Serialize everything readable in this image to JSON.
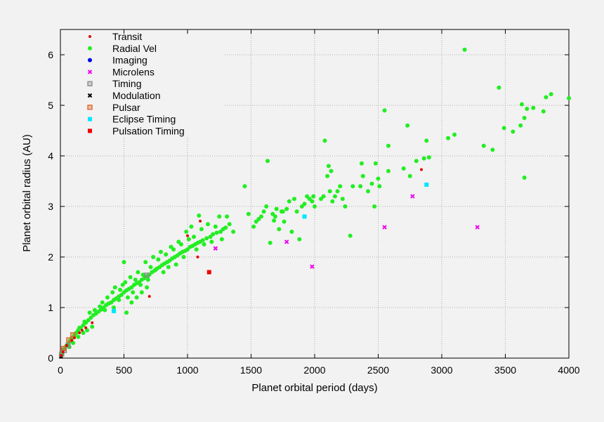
{
  "chart_data": {
    "type": "scatter",
    "xlabel": "Planet orbital period (days)",
    "ylabel": "Planet orbital radius (AU)",
    "xlim": [
      0,
      4000
    ],
    "ylim": [
      0,
      6.5
    ],
    "xticks": [
      0,
      500,
      1000,
      1500,
      2000,
      2500,
      3000,
      3500,
      4000
    ],
    "yticks": [
      0,
      1,
      2,
      3,
      4,
      5,
      6
    ],
    "grid": true,
    "legend_position": "top-left",
    "series": [
      {
        "name": "Transit",
        "color": "#e00000",
        "marker": "small-circle",
        "points": [
          [
            5,
            0.05
          ],
          [
            20,
            0.12
          ],
          [
            50,
            0.25
          ],
          [
            90,
            0.35
          ],
          [
            110,
            0.4
          ],
          [
            150,
            0.5
          ],
          [
            170,
            0.55
          ],
          [
            200,
            0.6
          ],
          [
            250,
            0.7
          ],
          [
            1000,
            2.42
          ],
          [
            1100,
            2.71
          ],
          [
            1080,
            2.0
          ],
          [
            700,
            1.22
          ],
          [
            2840,
            3.73
          ]
        ]
      },
      {
        "name": "Radial Vel",
        "color": "#22ee22",
        "marker": "circle",
        "points": [
          [
            5,
            0.05
          ],
          [
            15,
            0.1
          ],
          [
            30,
            0.18
          ],
          [
            45,
            0.24
          ],
          [
            60,
            0.28
          ],
          [
            75,
            0.34
          ],
          [
            90,
            0.4
          ],
          [
            110,
            0.45
          ],
          [
            125,
            0.5
          ],
          [
            140,
            0.55
          ],
          [
            160,
            0.6
          ],
          [
            180,
            0.65
          ],
          [
            200,
            0.7
          ],
          [
            220,
            0.75
          ],
          [
            240,
            0.8
          ],
          [
            260,
            0.85
          ],
          [
            280,
            0.88
          ],
          [
            300,
            0.92
          ],
          [
            320,
            0.96
          ],
          [
            340,
            1.0
          ],
          [
            360,
            1.05
          ],
          [
            380,
            1.08
          ],
          [
            400,
            1.1
          ],
          [
            420,
            1.15
          ],
          [
            440,
            1.18
          ],
          [
            460,
            1.22
          ],
          [
            480,
            1.25
          ],
          [
            500,
            1.3
          ],
          [
            520,
            1.34
          ],
          [
            540,
            1.37
          ],
          [
            560,
            1.4
          ],
          [
            580,
            1.45
          ],
          [
            600,
            1.48
          ],
          [
            620,
            1.5
          ],
          [
            640,
            1.55
          ],
          [
            660,
            1.58
          ],
          [
            680,
            1.62
          ],
          [
            700,
            1.65
          ],
          [
            720,
            1.7
          ],
          [
            740,
            1.73
          ],
          [
            760,
            1.77
          ],
          [
            780,
            1.8
          ],
          [
            800,
            1.84
          ],
          [
            820,
            1.87
          ],
          [
            840,
            1.9
          ],
          [
            860,
            1.93
          ],
          [
            880,
            1.97
          ],
          [
            900,
            2.0
          ],
          [
            920,
            2.03
          ],
          [
            940,
            2.07
          ],
          [
            960,
            2.1
          ],
          [
            980,
            2.12
          ],
          [
            1000,
            2.15
          ],
          [
            1020,
            2.2
          ],
          [
            1040,
            2.22
          ],
          [
            1060,
            2.25
          ],
          [
            1080,
            2.28
          ],
          [
            1100,
            2.3
          ],
          [
            1120,
            2.33
          ],
          [
            1150,
            2.37
          ],
          [
            1180,
            2.4
          ],
          [
            1200,
            2.45
          ],
          [
            1230,
            2.48
          ],
          [
            1260,
            2.5
          ],
          [
            1280,
            2.55
          ],
          [
            1300,
            2.58
          ],
          [
            1330,
            2.65
          ],
          [
            1360,
            2.5
          ],
          [
            330,
            1.1
          ],
          [
            350,
            0.95
          ],
          [
            370,
            1.2
          ],
          [
            410,
            1.3
          ],
          [
            430,
            1.4
          ],
          [
            470,
            1.35
          ],
          [
            490,
            1.45
          ],
          [
            510,
            1.5
          ],
          [
            530,
            1.2
          ],
          [
            550,
            1.6
          ],
          [
            570,
            1.3
          ],
          [
            590,
            1.55
          ],
          [
            610,
            1.7
          ],
          [
            630,
            1.45
          ],
          [
            650,
            1.65
          ],
          [
            670,
            1.9
          ],
          [
            690,
            1.55
          ],
          [
            710,
            1.8
          ],
          [
            730,
            2.0
          ],
          [
            750,
            1.75
          ],
          [
            770,
            1.95
          ],
          [
            790,
            2.1
          ],
          [
            810,
            1.7
          ],
          [
            830,
            2.05
          ],
          [
            850,
            1.8
          ],
          [
            870,
            2.2
          ],
          [
            890,
            2.15
          ],
          [
            910,
            1.85
          ],
          [
            930,
            2.3
          ],
          [
            950,
            2.25
          ],
          [
            970,
            2.0
          ],
          [
            990,
            2.5
          ],
          [
            1010,
            2.35
          ],
          [
            1030,
            2.6
          ],
          [
            1050,
            2.4
          ],
          [
            1070,
            2.15
          ],
          [
            1090,
            2.82
          ],
          [
            1110,
            2.55
          ],
          [
            1130,
            2.25
          ],
          [
            1160,
            2.65
          ],
          [
            1190,
            2.3
          ],
          [
            1220,
            2.6
          ],
          [
            1250,
            2.8
          ],
          [
            1270,
            2.35
          ],
          [
            1310,
            2.8
          ],
          [
            520,
            0.9
          ],
          [
            560,
            1.1
          ],
          [
            600,
            1.2
          ],
          [
            640,
            1.3
          ],
          [
            680,
            1.4
          ],
          [
            420,
            1.0
          ],
          [
            460,
            1.15
          ],
          [
            500,
            1.9
          ],
          [
            150,
            0.6
          ],
          [
            190,
            0.72
          ],
          [
            230,
            0.9
          ],
          [
            270,
            0.95
          ],
          [
            310,
            1.02
          ],
          [
            250,
            0.62
          ],
          [
            210,
            0.55
          ],
          [
            180,
            0.5
          ],
          [
            140,
            0.42
          ],
          [
            100,
            0.3
          ],
          [
            70,
            0.22
          ],
          [
            1450,
            3.4
          ],
          [
            1480,
            2.85
          ],
          [
            1520,
            2.6
          ],
          [
            1540,
            2.7
          ],
          [
            1560,
            2.75
          ],
          [
            1580,
            2.8
          ],
          [
            1600,
            2.9
          ],
          [
            1620,
            3.0
          ],
          [
            1630,
            3.9
          ],
          [
            1650,
            2.28
          ],
          [
            1670,
            2.85
          ],
          [
            1690,
            2.8
          ],
          [
            1700,
            2.95
          ],
          [
            1720,
            2.55
          ],
          [
            1740,
            2.9
          ],
          [
            1760,
            2.7
          ],
          [
            1780,
            2.95
          ],
          [
            1800,
            3.1
          ],
          [
            1820,
            2.5
          ],
          [
            1840,
            3.15
          ],
          [
            1860,
            2.9
          ],
          [
            1880,
            2.35
          ],
          [
            1900,
            3.0
          ],
          [
            1920,
            3.05
          ],
          [
            1940,
            3.2
          ],
          [
            1960,
            3.15
          ],
          [
            1980,
            3.1
          ],
          [
            2000,
            3.0
          ],
          [
            2050,
            3.15
          ],
          [
            2070,
            3.2
          ],
          [
            2080,
            4.3
          ],
          [
            2100,
            3.6
          ],
          [
            2110,
            3.8
          ],
          [
            2120,
            3.3
          ],
          [
            2130,
            3.7
          ],
          [
            2140,
            3.1
          ],
          [
            2160,
            3.2
          ],
          [
            2180,
            3.3
          ],
          [
            2200,
            3.4
          ],
          [
            2220,
            3.15
          ],
          [
            2240,
            3.0
          ],
          [
            2280,
            2.42
          ],
          [
            2360,
            3.4
          ],
          [
            2370,
            3.85
          ],
          [
            2380,
            3.6
          ],
          [
            2420,
            3.3
          ],
          [
            2450,
            3.45
          ],
          [
            2480,
            3.85
          ],
          [
            2500,
            3.55
          ],
          [
            2510,
            3.4
          ],
          [
            2550,
            4.9
          ],
          [
            2580,
            4.2
          ],
          [
            2580,
            3.7
          ],
          [
            2700,
            3.75
          ],
          [
            2730,
            4.6
          ],
          [
            2750,
            3.6
          ],
          [
            2800,
            3.9
          ],
          [
            2860,
            3.95
          ],
          [
            2880,
            4.3
          ],
          [
            2900,
            3.97
          ],
          [
            3050,
            4.35
          ],
          [
            3100,
            4.42
          ],
          [
            3180,
            6.1
          ],
          [
            3330,
            4.2
          ],
          [
            3400,
            4.12
          ],
          [
            3450,
            5.35
          ],
          [
            3490,
            4.55
          ],
          [
            3560,
            4.48
          ],
          [
            3620,
            4.6
          ],
          [
            3630,
            5.02
          ],
          [
            3650,
            4.75
          ],
          [
            3670,
            4.93
          ],
          [
            3650,
            3.57
          ],
          [
            3720,
            4.95
          ],
          [
            3800,
            4.88
          ],
          [
            3820,
            5.16
          ],
          [
            3860,
            5.22
          ],
          [
            4000,
            5.14
          ],
          [
            1750,
            2.9
          ],
          [
            1680,
            2.72
          ],
          [
            1990,
            3.2
          ],
          [
            2300,
            3.4
          ],
          [
            2470,
            3.0
          ]
        ]
      },
      {
        "name": "Imaging",
        "color": "#0000ee",
        "marker": "circle",
        "points": []
      },
      {
        "name": "Microlens",
        "color": "#ee00ee",
        "marker": "x",
        "points": [
          [
            1220,
            2.17
          ],
          [
            1780,
            2.3
          ],
          [
            1980,
            1.81
          ],
          [
            2550,
            2.59
          ],
          [
            2770,
            3.2
          ],
          [
            3280,
            2.59
          ]
        ]
      },
      {
        "name": "Timing",
        "color": "#888888",
        "marker": "open-square",
        "points": [
          [
            10,
            0.08
          ],
          [
            30,
            0.15
          ],
          [
            60,
            0.25
          ],
          [
            680,
            1.64
          ]
        ]
      },
      {
        "name": "Modulation",
        "color": "#000000",
        "marker": "x",
        "points": [
          [
            5,
            0.03
          ]
        ]
      },
      {
        "name": "Pulsar",
        "color": "#e06020",
        "marker": "open-square",
        "points": [
          [
            25,
            0.19
          ],
          [
            66,
            0.36
          ],
          [
            98,
            0.46
          ]
        ]
      },
      {
        "name": "Eclipse Timing",
        "color": "#00e5ff",
        "marker": "square",
        "points": [
          [
            420,
            0.93
          ],
          [
            1920,
            2.8
          ],
          [
            2880,
            3.43
          ]
        ]
      },
      {
        "name": "Pulsation Timing",
        "color": "#ee0000",
        "marker": "square",
        "points": [
          [
            1170,
            1.7
          ]
        ]
      }
    ]
  }
}
